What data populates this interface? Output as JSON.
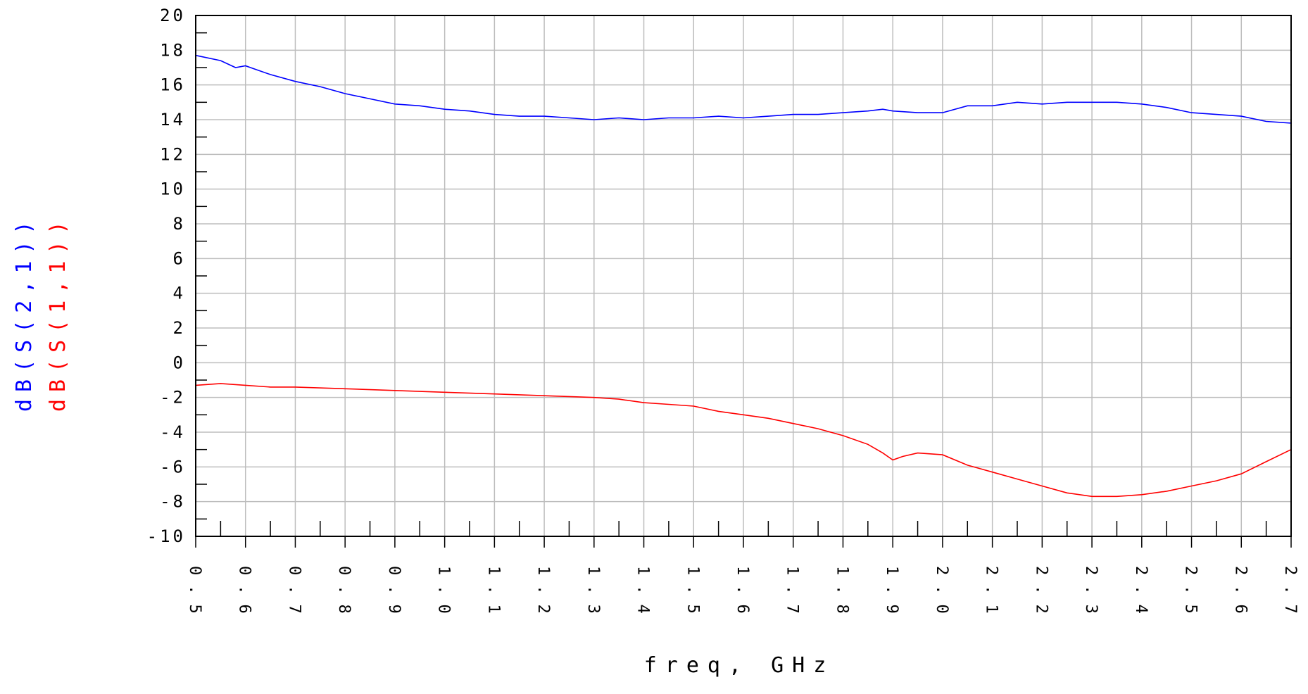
{
  "chart_data": {
    "type": "line",
    "xlabel": "freq, GHz",
    "x_ticks": [
      "0.5",
      "0.6",
      "0.7",
      "0.8",
      "0.9",
      "1.0",
      "1.1",
      "1.2",
      "1.3",
      "1.4",
      "1.5",
      "1.6",
      "1.7",
      "1.8",
      "1.9",
      "2.0",
      "2.1",
      "2.2",
      "2.3",
      "2.4",
      "2.5",
      "2.6",
      "2.7"
    ],
    "y_ticks": [
      "20",
      "18",
      "16",
      "14",
      "12",
      "10",
      "8",
      "6",
      "4",
      "2",
      "0",
      "-2",
      "-4",
      "-6",
      "-8",
      "-10"
    ],
    "xlim": [
      0.5,
      2.7
    ],
    "ylim": [
      -10,
      20
    ],
    "grid": true,
    "series": [
      {
        "name": "dB(S(2,1))",
        "color": "#0000ff",
        "x": [
          0.5,
          0.55,
          0.58,
          0.6,
          0.62,
          0.65,
          0.7,
          0.75,
          0.8,
          0.85,
          0.9,
          0.95,
          1.0,
          1.05,
          1.1,
          1.15,
          1.2,
          1.25,
          1.3,
          1.35,
          1.4,
          1.45,
          1.5,
          1.55,
          1.6,
          1.65,
          1.7,
          1.75,
          1.8,
          1.85,
          1.88,
          1.9,
          1.95,
          2.0,
          2.05,
          2.1,
          2.15,
          2.2,
          2.25,
          2.3,
          2.35,
          2.4,
          2.45,
          2.5,
          2.55,
          2.6,
          2.65,
          2.7
        ],
        "y": [
          17.7,
          17.4,
          17.0,
          17.1,
          16.9,
          16.6,
          16.2,
          15.9,
          15.5,
          15.2,
          14.9,
          14.8,
          14.6,
          14.5,
          14.3,
          14.2,
          14.2,
          14.1,
          14.0,
          14.1,
          14.0,
          14.1,
          14.1,
          14.2,
          14.1,
          14.2,
          14.3,
          14.3,
          14.4,
          14.5,
          14.6,
          14.5,
          14.4,
          14.4,
          14.8,
          14.8,
          15.0,
          14.9,
          15.0,
          15.0,
          15.0,
          14.9,
          14.7,
          14.4,
          14.3,
          14.2,
          13.9,
          13.8
        ]
      },
      {
        "name": "dB(S(1,1))",
        "color": "#ff0000",
        "x": [
          0.5,
          0.55,
          0.6,
          0.65,
          0.7,
          0.8,
          0.9,
          1.0,
          1.1,
          1.2,
          1.3,
          1.35,
          1.4,
          1.45,
          1.5,
          1.55,
          1.6,
          1.65,
          1.7,
          1.75,
          1.8,
          1.85,
          1.88,
          1.9,
          1.92,
          1.95,
          2.0,
          2.05,
          2.1,
          2.15,
          2.2,
          2.25,
          2.3,
          2.35,
          2.4,
          2.45,
          2.5,
          2.55,
          2.6,
          2.65,
          2.7
        ],
        "y": [
          -1.3,
          -1.2,
          -1.3,
          -1.4,
          -1.4,
          -1.5,
          -1.6,
          -1.7,
          -1.8,
          -1.9,
          -2.0,
          -2.1,
          -2.3,
          -2.4,
          -2.5,
          -2.8,
          -3.0,
          -3.2,
          -3.5,
          -3.8,
          -4.2,
          -4.7,
          -5.2,
          -5.6,
          -5.4,
          -5.2,
          -5.3,
          -5.9,
          -6.3,
          -6.7,
          -7.1,
          -7.5,
          -7.7,
          -7.7,
          -7.6,
          -7.4,
          -7.1,
          -6.8,
          -6.4,
          -5.7,
          -5.0
        ]
      }
    ]
  }
}
